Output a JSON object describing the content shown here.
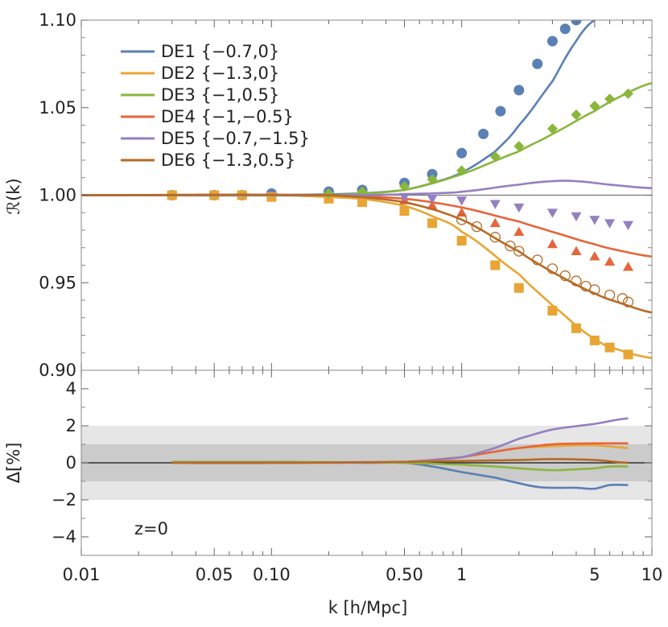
{
  "chart_data": [
    {
      "type": "line",
      "panel": "ratio",
      "xlabel": "k [h/Mpc]",
      "ylabel": "ℛ(k)",
      "xscale": "log",
      "xlim": [
        0.01,
        10
      ],
      "ylim": [
        0.9,
        1.1
      ],
      "yticks": [
        "0.90",
        "0.95",
        "1.00",
        "1.05",
        "1.10"
      ],
      "xticks": [
        "0.01",
        "0.05",
        "0.10",
        "0.50",
        "1",
        "5",
        "10"
      ],
      "legend_position": "top-left",
      "reference_line": 1.0,
      "series": [
        {
          "name": "DE1 {−0.7,0}",
          "color": "#5a80b5",
          "marker": "circle",
          "curve": [
            [
              0.01,
              1.0
            ],
            [
              0.1,
              1.0
            ],
            [
              0.3,
              1.001
            ],
            [
              0.5,
              1.003
            ],
            [
              0.7,
              1.007
            ],
            [
              1.0,
              1.013
            ],
            [
              1.5,
              1.025
            ],
            [
              2.0,
              1.04
            ],
            [
              3.0,
              1.065
            ],
            [
              4.0,
              1.088
            ],
            [
              5.0,
              1.1
            ]
          ],
          "points": [
            [
              0.03,
              1.0
            ],
            [
              0.05,
              1.0
            ],
            [
              0.07,
              1.0
            ],
            [
              0.1,
              1.001
            ],
            [
              0.2,
              1.002
            ],
            [
              0.3,
              1.003
            ],
            [
              0.5,
              1.007
            ],
            [
              0.7,
              1.012
            ],
            [
              1.0,
              1.024
            ],
            [
              1.3,
              1.035
            ],
            [
              1.6,
              1.048
            ],
            [
              2.0,
              1.06
            ],
            [
              2.5,
              1.075
            ],
            [
              3.0,
              1.088
            ],
            [
              3.5,
              1.095
            ],
            [
              4.0,
              1.1
            ]
          ]
        },
        {
          "name": "DE2 {−1.3,0}",
          "color": "#e8a534",
          "marker": "square",
          "curve": [
            [
              0.01,
              1.0
            ],
            [
              0.1,
              1.0
            ],
            [
              0.3,
              0.998
            ],
            [
              0.5,
              0.994
            ],
            [
              0.7,
              0.988
            ],
            [
              1.0,
              0.979
            ],
            [
              2.0,
              0.955
            ],
            [
              3.0,
              0.937
            ],
            [
              5.0,
              0.918
            ],
            [
              7.0,
              0.911
            ],
            [
              10.0,
              0.907
            ]
          ],
          "points": [
            [
              0.03,
              1.0
            ],
            [
              0.05,
              1.0
            ],
            [
              0.07,
              1.0
            ],
            [
              0.1,
              0.999
            ],
            [
              0.2,
              0.998
            ],
            [
              0.3,
              0.996
            ],
            [
              0.5,
              0.991
            ],
            [
              0.7,
              0.984
            ],
            [
              1.0,
              0.974
            ],
            [
              1.5,
              0.96
            ],
            [
              2.0,
              0.947
            ],
            [
              3.0,
              0.934
            ],
            [
              4.0,
              0.924
            ],
            [
              5.0,
              0.917
            ],
            [
              6.0,
              0.913
            ],
            [
              7.5,
              0.909
            ]
          ]
        },
        {
          "name": "DE3 {−1,0.5}",
          "color": "#8ab63c",
          "marker": "diamond",
          "curve": [
            [
              0.01,
              1.0
            ],
            [
              0.2,
              1.0
            ],
            [
              0.5,
              1.003
            ],
            [
              1.0,
              1.012
            ],
            [
              2.0,
              1.025
            ],
            [
              3.0,
              1.035
            ],
            [
              5.0,
              1.048
            ],
            [
              7.0,
              1.057
            ],
            [
              10.0,
              1.064
            ]
          ],
          "points": [
            [
              0.2,
              1.001
            ],
            [
              0.3,
              1.002
            ],
            [
              0.5,
              1.005
            ],
            [
              0.7,
              1.009
            ],
            [
              1.0,
              1.014
            ],
            [
              1.5,
              1.022
            ],
            [
              2.0,
              1.028
            ],
            [
              3.0,
              1.038
            ],
            [
              4.0,
              1.046
            ],
            [
              5.0,
              1.051
            ],
            [
              6.0,
              1.055
            ],
            [
              7.5,
              1.058
            ]
          ]
        },
        {
          "name": "DE4 {−1,−0.5}",
          "color": "#e6653a",
          "marker": "triangle-up",
          "curve": [
            [
              0.01,
              1.0
            ],
            [
              0.2,
              1.0
            ],
            [
              0.5,
              0.998
            ],
            [
              1.0,
              0.993
            ],
            [
              2.0,
              0.985
            ],
            [
              3.0,
              0.979
            ],
            [
              5.0,
              0.972
            ],
            [
              7.0,
              0.968
            ],
            [
              10.0,
              0.965
            ]
          ],
          "points": [
            [
              0.5,
              0.997
            ],
            [
              0.7,
              0.994
            ],
            [
              1.0,
              0.99
            ],
            [
              1.5,
              0.984
            ],
            [
              2.0,
              0.979
            ],
            [
              3.0,
              0.972
            ],
            [
              4.0,
              0.968
            ],
            [
              5.0,
              0.965
            ],
            [
              6.0,
              0.962
            ],
            [
              7.5,
              0.959
            ]
          ]
        },
        {
          "name": "DE5 {−0.7,−1.5}",
          "color": "#9380c0",
          "marker": "triangle-down",
          "curve": [
            [
              0.01,
              1.0
            ],
            [
              0.3,
              1.0
            ],
            [
              0.7,
              1.001
            ],
            [
              1.0,
              1.002
            ],
            [
              2.0,
              1.006
            ],
            [
              3.0,
              1.008
            ],
            [
              4.0,
              1.008
            ],
            [
              6.0,
              1.006
            ],
            [
              10.0,
              1.004
            ]
          ],
          "points": [
            [
              0.5,
              0.999
            ],
            [
              0.7,
              0.998
            ],
            [
              1.0,
              0.997
            ],
            [
              1.5,
              0.995
            ],
            [
              2.0,
              0.993
            ],
            [
              3.0,
              0.99
            ],
            [
              4.0,
              0.988
            ],
            [
              5.0,
              0.986
            ],
            [
              6.0,
              0.984
            ],
            [
              7.5,
              0.983
            ]
          ]
        },
        {
          "name": "DE6 {−1.3,0.5}",
          "color": "#b76a25",
          "marker": "open-circle",
          "curve": [
            [
              0.01,
              1.0
            ],
            [
              0.2,
              1.0
            ],
            [
              0.5,
              0.996
            ],
            [
              1.0,
              0.986
            ],
            [
              2.0,
              0.968
            ],
            [
              3.0,
              0.956
            ],
            [
              5.0,
              0.944
            ],
            [
              7.0,
              0.938
            ],
            [
              10.0,
              0.933
            ]
          ],
          "points": [
            [
              1.0,
              0.986
            ],
            [
              1.2,
              0.982
            ],
            [
              1.5,
              0.976
            ],
            [
              1.8,
              0.971
            ],
            [
              2.0,
              0.968
            ],
            [
              2.5,
              0.963
            ],
            [
              3.0,
              0.958
            ],
            [
              3.5,
              0.954
            ],
            [
              4.0,
              0.951
            ],
            [
              4.5,
              0.948
            ],
            [
              5.0,
              0.946
            ],
            [
              6.0,
              0.943
            ],
            [
              7.0,
              0.941
            ],
            [
              7.5,
              0.939
            ]
          ]
        }
      ]
    },
    {
      "type": "line",
      "panel": "difference",
      "xlabel": "k [h/Mpc]",
      "ylabel": "Δ[%]",
      "xscale": "log",
      "xlim": [
        0.01,
        10
      ],
      "ylim": [
        -5,
        5
      ],
      "yticks": [
        "−4",
        "−2",
        "0",
        "2",
        "4"
      ],
      "bands": [
        {
          "range": [
            -2,
            2
          ],
          "color": "#e6e6e6"
        },
        {
          "range": [
            -1,
            1
          ],
          "color": "#cbcbcb"
        }
      ],
      "reference_line": 0,
      "annotation": "z=0",
      "series": [
        {
          "name": "DE1",
          "color": "#5a80b5",
          "points": [
            [
              0.03,
              0.05
            ],
            [
              0.1,
              0.05
            ],
            [
              0.3,
              0.0
            ],
            [
              0.5,
              0.0
            ],
            [
              0.7,
              -0.2
            ],
            [
              1.0,
              -0.5
            ],
            [
              1.5,
              -0.8
            ],
            [
              2.0,
              -1.1
            ],
            [
              2.5,
              -1.3
            ],
            [
              3.0,
              -1.35
            ],
            [
              4.0,
              -1.35
            ],
            [
              5.0,
              -1.4
            ],
            [
              6.0,
              -1.2
            ],
            [
              7.5,
              -1.2
            ]
          ]
        },
        {
          "name": "DE2",
          "color": "#e8a534",
          "points": [
            [
              0.03,
              0.0
            ],
            [
              0.1,
              0.0
            ],
            [
              0.5,
              0.05
            ],
            [
              1.0,
              0.3
            ],
            [
              1.5,
              0.6
            ],
            [
              2.0,
              0.8
            ],
            [
              3.0,
              0.9
            ],
            [
              5.0,
              0.95
            ],
            [
              7.5,
              0.8
            ]
          ]
        },
        {
          "name": "DE3",
          "color": "#8ab63c",
          "points": [
            [
              0.03,
              0.05
            ],
            [
              0.1,
              0.05
            ],
            [
              0.5,
              0.0
            ],
            [
              1.0,
              -0.1
            ],
            [
              1.5,
              -0.2
            ],
            [
              2.0,
              -0.3
            ],
            [
              3.0,
              -0.4
            ],
            [
              4.0,
              -0.35
            ],
            [
              5.0,
              -0.3
            ],
            [
              6.0,
              -0.2
            ],
            [
              7.5,
              -0.2
            ]
          ]
        },
        {
          "name": "DE4",
          "color": "#e6653a",
          "points": [
            [
              0.03,
              0.0
            ],
            [
              0.1,
              0.0
            ],
            [
              0.5,
              0.05
            ],
            [
              1.0,
              0.3
            ],
            [
              1.5,
              0.6
            ],
            [
              2.0,
              0.8
            ],
            [
              3.0,
              1.0
            ],
            [
              5.0,
              1.05
            ],
            [
              7.5,
              1.05
            ]
          ]
        },
        {
          "name": "DE5",
          "color": "#9380c0",
          "points": [
            [
              0.03,
              0.0
            ],
            [
              0.1,
              0.0
            ],
            [
              0.5,
              0.05
            ],
            [
              1.0,
              0.3
            ],
            [
              1.5,
              0.8
            ],
            [
              2.0,
              1.3
            ],
            [
              3.0,
              1.8
            ],
            [
              5.0,
              2.1
            ],
            [
              7.5,
              2.4
            ]
          ]
        },
        {
          "name": "DE6",
          "color": "#b76a25",
          "points": [
            [
              0.03,
              0.0
            ],
            [
              0.1,
              0.0
            ],
            [
              0.5,
              0.05
            ],
            [
              1.0,
              0.1
            ],
            [
              2.0,
              0.15
            ],
            [
              3.0,
              0.2
            ],
            [
              5.0,
              0.15
            ],
            [
              7.5,
              0.0
            ]
          ]
        }
      ]
    }
  ]
}
